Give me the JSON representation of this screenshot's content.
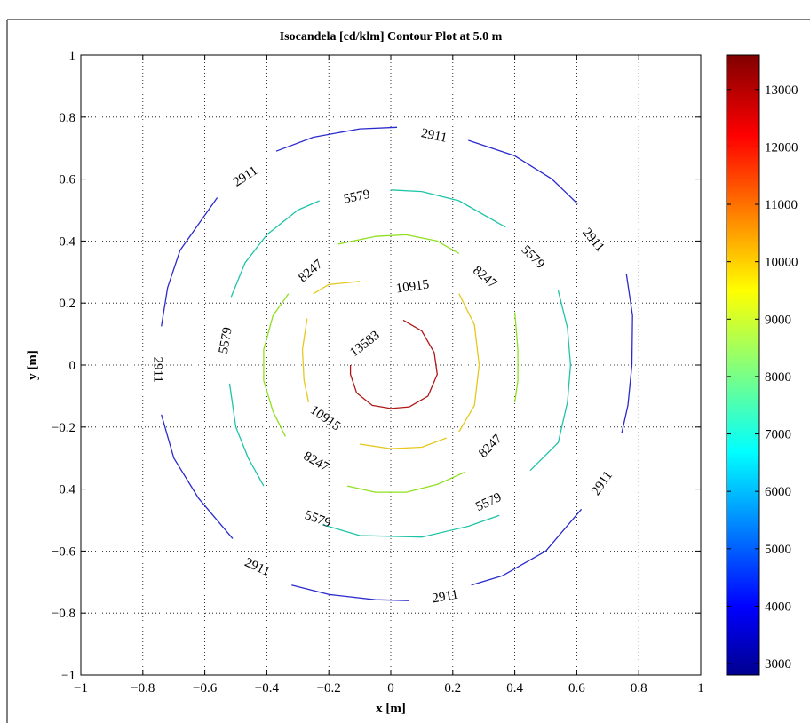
{
  "chart_data": {
    "type": "contour",
    "title": "Isocandela [cd/klm] Contour Plot at 5.0 m",
    "xlabel": "x [m]",
    "ylabel": "y [m]",
    "xlim": [
      -1,
      1
    ],
    "ylim": [
      -1,
      1
    ],
    "grid": true,
    "x_ticks": [
      "−1",
      "−0.8",
      "−0.6",
      "−0.4",
      "−0.2",
      "0",
      "0.2",
      "0.4",
      "0.6",
      "0.8",
      "1"
    ],
    "y_ticks": [
      "−1",
      "−0.8",
      "−0.6",
      "−0.4",
      "−0.2",
      "0",
      "0.2",
      "0.4",
      "0.6",
      "0.8",
      "1"
    ],
    "levels": [
      {
        "value": 2911,
        "label": "2911",
        "color": "#2a2acc",
        "segments": [
          [
            [
              -0.37,
              0.69
            ],
            [
              -0.25,
              0.735
            ],
            [
              -0.1,
              0.762
            ],
            [
              0.02,
              0.767
            ]
          ],
          [
            [
              0.25,
              0.725
            ],
            [
              0.4,
              0.675
            ],
            [
              0.52,
              0.6
            ],
            [
              0.603,
              0.52
            ]
          ],
          [
            [
              0.76,
              0.295
            ],
            [
              0.78,
              0.16
            ],
            [
              0.778,
              0.0
            ],
            [
              0.765,
              -0.13
            ],
            [
              0.745,
              -0.22
            ]
          ],
          [
            [
              0.615,
              -0.465
            ],
            [
              0.5,
              -0.6
            ],
            [
              0.36,
              -0.68
            ],
            [
              0.26,
              -0.71
            ]
          ],
          [
            [
              0.06,
              -0.76
            ],
            [
              -0.05,
              -0.757
            ],
            [
              -0.2,
              -0.74
            ],
            [
              -0.32,
              -0.71
            ]
          ],
          [
            [
              -0.51,
              -0.56
            ],
            [
              -0.62,
              -0.43
            ],
            [
              -0.7,
              -0.3
            ],
            [
              -0.74,
              -0.16
            ]
          ],
          [
            [
              -0.74,
              0.125
            ],
            [
              -0.72,
              0.25
            ],
            [
              -0.68,
              0.37
            ],
            [
              -0.56,
              0.54
            ]
          ]
        ],
        "labels": [
          {
            "x": 0.14,
            "y": 0.742,
            "angle": 12
          },
          {
            "x": 0.655,
            "y": 0.405,
            "angle": 50
          },
          {
            "x": -0.75,
            "y": -0.015,
            "angle": 90
          },
          {
            "x": -0.47,
            "y": 0.61,
            "angle": -33
          },
          {
            "x": 0.68,
            "y": -0.38,
            "angle": -55
          },
          {
            "x": 0.175,
            "y": -0.745,
            "angle": -10
          },
          {
            "x": -0.43,
            "y": -0.65,
            "angle": 25
          }
        ]
      },
      {
        "value": 5579,
        "label": "5579",
        "color": "#1fc4a8",
        "segments": [
          [
            [
              0.0,
              0.565
            ],
            [
              0.1,
              0.56
            ],
            [
              0.22,
              0.53
            ],
            [
              0.37,
              0.445
            ]
          ],
          [
            [
              0.54,
              0.24
            ],
            [
              0.57,
              0.12
            ],
            [
              0.58,
              0.0
            ],
            [
              0.57,
              -0.12
            ],
            [
              0.54,
              -0.25
            ],
            [
              0.45,
              -0.34
            ]
          ],
          [
            [
              0.35,
              -0.485
            ],
            [
              0.25,
              -0.52
            ],
            [
              0.1,
              -0.555
            ],
            [
              -0.1,
              -0.55
            ],
            [
              -0.22,
              -0.515
            ]
          ],
          [
            [
              -0.41,
              -0.39
            ],
            [
              -0.46,
              -0.3
            ],
            [
              -0.5,
              -0.2
            ],
            [
              -0.52,
              -0.06
            ]
          ],
          [
            [
              -0.515,
              0.22
            ],
            [
              -0.47,
              0.33
            ],
            [
              -0.4,
              0.42
            ],
            [
              -0.3,
              0.5
            ],
            [
              -0.23,
              0.53
            ]
          ]
        ],
        "labels": [
          {
            "x": -0.11,
            "y": 0.545,
            "angle": -12
          },
          {
            "x": 0.46,
            "y": 0.35,
            "angle": 45
          },
          {
            "x": 0.315,
            "y": -0.44,
            "angle": -25
          },
          {
            "x": -0.235,
            "y": -0.495,
            "angle": 20
          },
          {
            "x": -0.535,
            "y": 0.08,
            "angle": -80
          }
        ]
      },
      {
        "value": 8247,
        "label": "8247",
        "color": "#8fe020",
        "segments": [
          [
            [
              -0.17,
              0.39
            ],
            [
              -0.05,
              0.415
            ],
            [
              0.05,
              0.42
            ],
            [
              0.15,
              0.4
            ],
            [
              0.22,
              0.36
            ]
          ],
          [
            [
              0.4,
              0.17
            ],
            [
              0.41,
              0.05
            ],
            [
              0.41,
              -0.05
            ],
            [
              0.4,
              -0.12
            ]
          ],
          [
            [
              0.24,
              -0.345
            ],
            [
              0.15,
              -0.385
            ],
            [
              0.05,
              -0.41
            ],
            [
              -0.05,
              -0.41
            ],
            [
              -0.14,
              -0.39
            ]
          ],
          [
            [
              -0.34,
              -0.23
            ],
            [
              -0.38,
              -0.15
            ],
            [
              -0.41,
              -0.05
            ],
            [
              -0.41,
              0.05
            ],
            [
              -0.38,
              0.16
            ],
            [
              -0.33,
              0.23
            ]
          ]
        ],
        "labels": [
          {
            "x": -0.26,
            "y": 0.305,
            "angle": -40
          },
          {
            "x": 0.305,
            "y": 0.285,
            "angle": 40
          },
          {
            "x": 0.32,
            "y": -0.26,
            "angle": -45
          },
          {
            "x": -0.24,
            "y": -0.31,
            "angle": 30
          }
        ]
      },
      {
        "value": 10915,
        "label": "10915",
        "color": "#e6c81f",
        "segments": [
          [
            [
              -0.25,
              0.23
            ],
            [
              -0.2,
              0.26
            ],
            [
              -0.1,
              0.27
            ]
          ],
          [
            [
              0.22,
              0.23
            ],
            [
              0.27,
              0.13
            ],
            [
              0.285,
              0.0
            ],
            [
              0.27,
              -0.13
            ],
            [
              0.22,
              -0.215
            ]
          ],
          [
            [
              0.18,
              -0.235
            ],
            [
              0.1,
              -0.265
            ],
            [
              0.0,
              -0.27
            ],
            [
              -0.1,
              -0.255
            ]
          ],
          [
            [
              -0.265,
              -0.12
            ],
            [
              -0.28,
              -0.05
            ],
            [
              -0.285,
              0.05
            ],
            [
              -0.27,
              0.15
            ]
          ]
        ],
        "labels": [
          {
            "x": 0.07,
            "y": 0.255,
            "angle": -8
          },
          {
            "x": -0.21,
            "y": -0.17,
            "angle": 35
          }
        ]
      },
      {
        "value": 13583,
        "label": "13583",
        "color": "#b01818",
        "segments": [
          [
            [
              0.04,
              0.145
            ],
            [
              0.1,
              0.11
            ],
            [
              0.14,
              0.04
            ],
            [
              0.15,
              -0.03
            ],
            [
              0.12,
              -0.1
            ],
            [
              0.06,
              -0.135
            ],
            [
              0.0,
              -0.14
            ],
            [
              -0.06,
              -0.13
            ],
            [
              -0.11,
              -0.09
            ],
            [
              -0.13,
              -0.03
            ],
            [
              -0.13,
              0.0
            ]
          ]
        ],
        "labels": [
          {
            "x": -0.085,
            "y": 0.07,
            "angle": -38
          }
        ]
      }
    ],
    "colorbar": {
      "min": 2800,
      "max": 13600,
      "ticks": [
        "3000",
        "4000",
        "5000",
        "6000",
        "7000",
        "8000",
        "9000",
        "10000",
        "11000",
        "12000",
        "13000"
      ],
      "tick_values": [
        3000,
        4000,
        5000,
        6000,
        7000,
        8000,
        9000,
        10000,
        11000,
        12000,
        13000
      ]
    }
  }
}
